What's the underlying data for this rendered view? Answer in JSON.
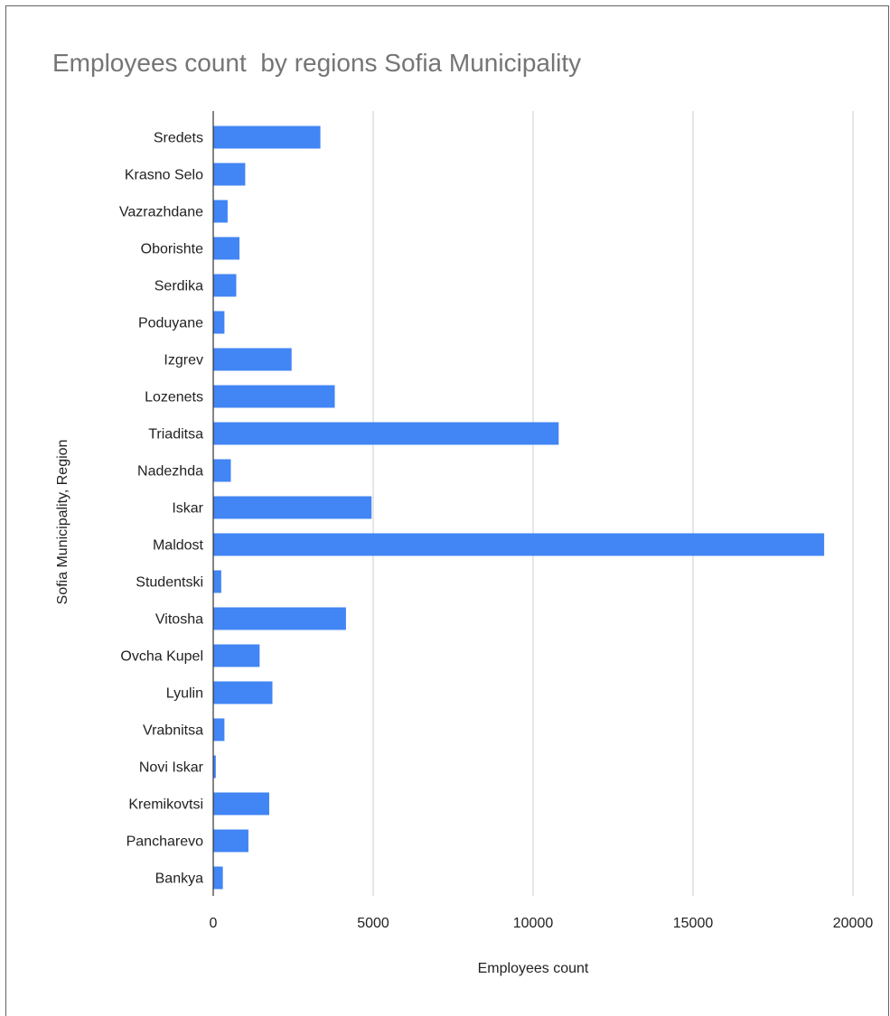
{
  "chart_data": {
    "type": "bar",
    "orientation": "horizontal",
    "title": "Employees count  by regions Sofia Municipality",
    "xlabel": "Employees count",
    "ylabel": "Sofia Municipality, Region",
    "xlim": [
      0,
      20000
    ],
    "xticks": [
      "0",
      "5000",
      "10000",
      "15000",
      "20000"
    ],
    "grid": true,
    "legend": "none",
    "bar_color": "#4285f4",
    "categories": [
      "Sredets",
      "Krasno Selo",
      "Vazrazhdane",
      "Oborishte",
      "Serdika",
      "Poduyane",
      "Izgrev",
      "Lozenets",
      "Triaditsa",
      "Nadezhda",
      "Iskar",
      "Maldost",
      "Studentski",
      "Vitosha",
      "Ovcha Kupel",
      "Lyulin",
      "Vrabnitsa",
      "Novi Iskar",
      "Kremikovtsi",
      "Pancharevo",
      "Bankya"
    ],
    "values": [
      3350,
      1000,
      450,
      820,
      720,
      350,
      2450,
      3800,
      10800,
      550,
      4950,
      19100,
      250,
      4150,
      1450,
      1850,
      350,
      80,
      1750,
      1100,
      300
    ]
  }
}
